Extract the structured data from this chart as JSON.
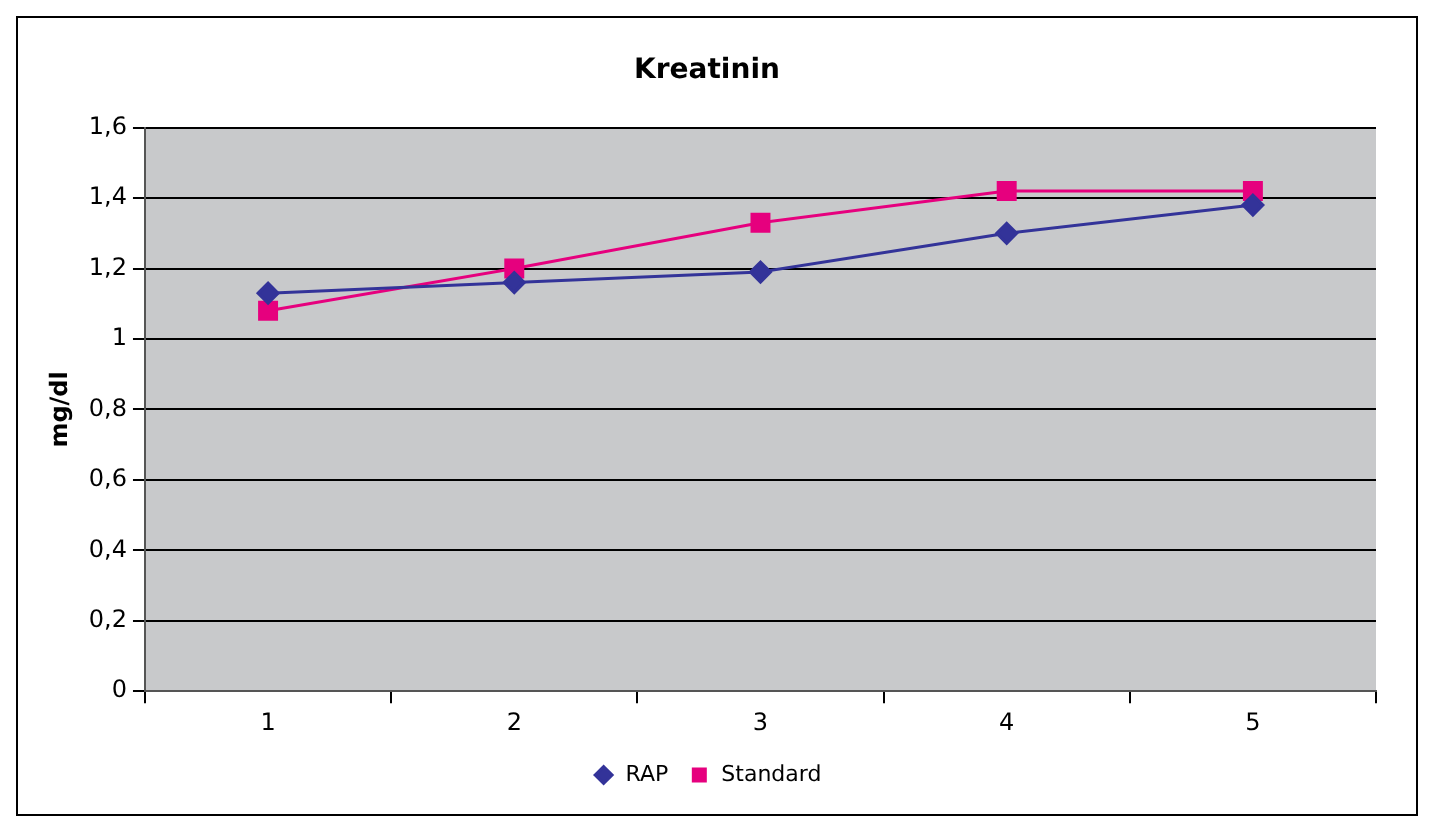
{
  "chart_data": {
    "type": "line",
    "title": "Kreatinin",
    "ylabel": "mg/dl",
    "categories": [
      "1",
      "2",
      "3",
      "4",
      "5"
    ],
    "series": [
      {
        "name": "RAP",
        "color": "#333399",
        "marker": "diamond",
        "values": [
          1.13,
          1.16,
          1.19,
          1.3,
          1.38
        ]
      },
      {
        "name": "Standard",
        "color": "#e6007e",
        "marker": "square",
        "values": [
          1.08,
          1.2,
          1.33,
          1.42,
          1.42
        ]
      }
    ],
    "ylim": [
      0,
      1.6
    ],
    "yticks": [
      {
        "value": 0,
        "label": "0"
      },
      {
        "value": 0.2,
        "label": "0,2"
      },
      {
        "value": 0.4,
        "label": "0,4"
      },
      {
        "value": 0.6,
        "label": "0,6"
      },
      {
        "value": 0.8,
        "label": "0,8"
      },
      {
        "value": 1,
        "label": "1"
      },
      {
        "value": 1.2,
        "label": "1,2"
      },
      {
        "value": 1.4,
        "label": "1,4"
      },
      {
        "value": 1.6,
        "label": "1,6"
      }
    ],
    "grid": "y",
    "legend": "bottom"
  }
}
